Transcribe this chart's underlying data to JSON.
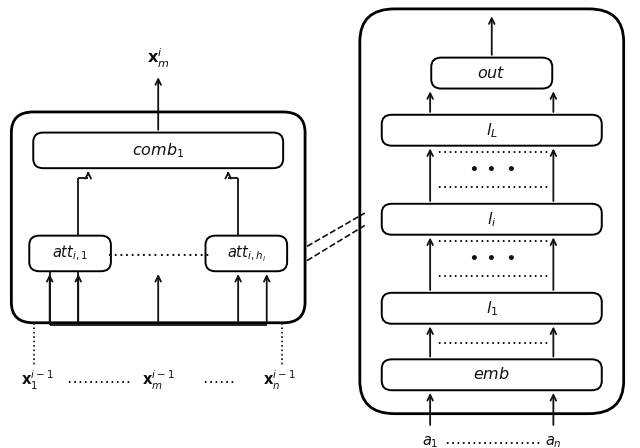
{
  "bg_color": "#ffffff",
  "line_color": "#111111",
  "text_color": "#111111",
  "fs": 10.5
}
